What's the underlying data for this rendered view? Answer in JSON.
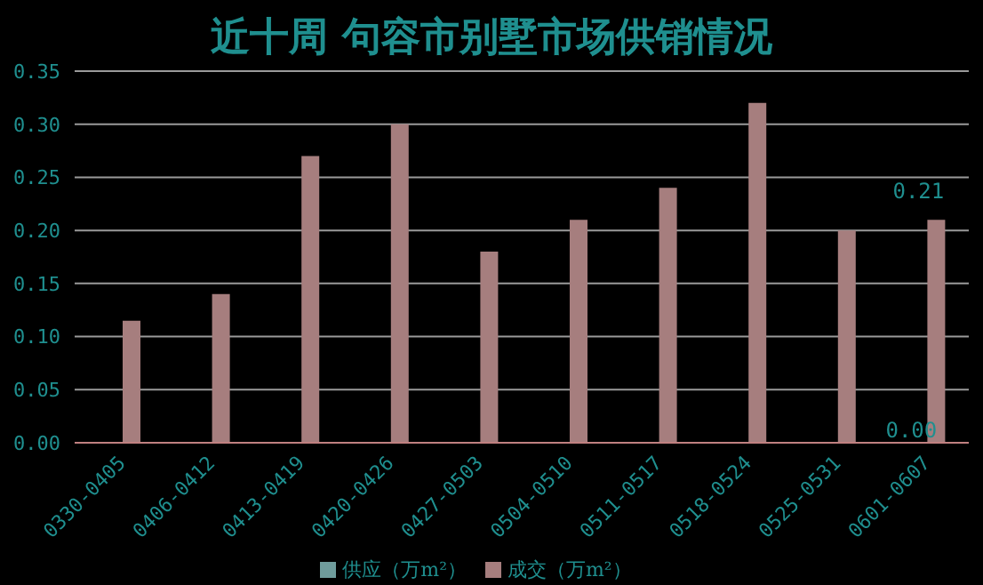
{
  "chart_data": {
    "type": "bar",
    "title": "近十周 句容市别墅市场供销情况",
    "categories": [
      "0330-0405",
      "0406-0412",
      "0413-0419",
      "0420-0426",
      "0427-0503",
      "0504-0510",
      "0511-0517",
      "0518-0524",
      "0525-0531",
      "0601-0607"
    ],
    "series": [
      {
        "name": "供应（万m²）",
        "color": "#6f9c9c",
        "values": [
          0,
          0,
          0,
          0,
          0,
          0,
          0,
          0,
          0,
          0
        ],
        "value_labels": [
          null,
          null,
          null,
          null,
          null,
          null,
          null,
          null,
          null,
          "0.00"
        ]
      },
      {
        "name": "成交（万m²）",
        "color": "#a67e7e",
        "values": [
          0.115,
          0.14,
          0.27,
          0.3,
          0.18,
          0.21,
          0.24,
          0.32,
          0.2,
          0.21
        ],
        "value_labels": [
          null,
          null,
          null,
          null,
          null,
          null,
          null,
          null,
          null,
          "0.21"
        ]
      }
    ],
    "ylim": [
      0,
      0.35
    ],
    "yticks": [
      {
        "value": 0,
        "label": "0.00"
      },
      {
        "value": 0.05,
        "label": "0.05"
      },
      {
        "value": 0.1,
        "label": "0.10"
      },
      {
        "value": 0.15,
        "label": "0.15"
      },
      {
        "value": 0.2,
        "label": "0.20"
      },
      {
        "value": 0.25,
        "label": "0.25"
      },
      {
        "value": 0.3,
        "label": "0.30"
      },
      {
        "value": 0.35,
        "label": "0.35"
      }
    ],
    "grid": "y",
    "legend": "bottom"
  }
}
